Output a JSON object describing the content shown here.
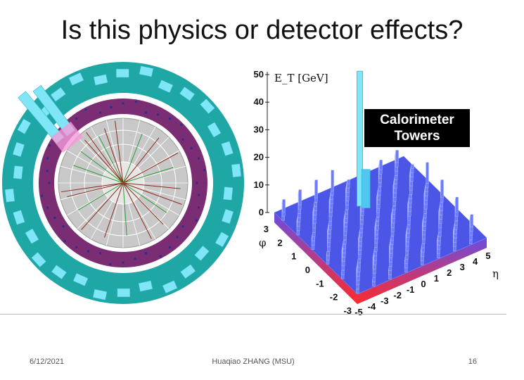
{
  "slide": {
    "title": "Is this physics or detector effects?",
    "footer": {
      "date": "6/12/2021",
      "author": "Huaqiao ZHANG (MSU)",
      "page": "16"
    }
  },
  "event_display": {
    "label": "Calorimeter Towers",
    "label_lines": [
      "Calorimeter",
      "Towers"
    ],
    "colors": {
      "outer_ring": "#1fa7a5",
      "inner_ring": "#7a2d72",
      "tower": "#7fe6f7",
      "tracker": "#c8c8c8"
    }
  },
  "chart_data": {
    "type": "bar3d",
    "title": "",
    "zlabel": "E_T [GeV]",
    "z_ticks": [
      0,
      10,
      20,
      30,
      40,
      50
    ],
    "xlabel": "η",
    "x_ticks": [
      -5,
      -4,
      -3,
      -2,
      -1,
      0,
      1,
      2,
      3,
      4,
      5
    ],
    "ylabel": "φ",
    "y_ticks": [
      -3,
      -2,
      -1,
      0,
      1,
      2,
      3
    ],
    "spike": {
      "eta": 0,
      "phi": 1.5,
      "et": 52
    },
    "background_level_gev": [
      0,
      8
    ]
  }
}
